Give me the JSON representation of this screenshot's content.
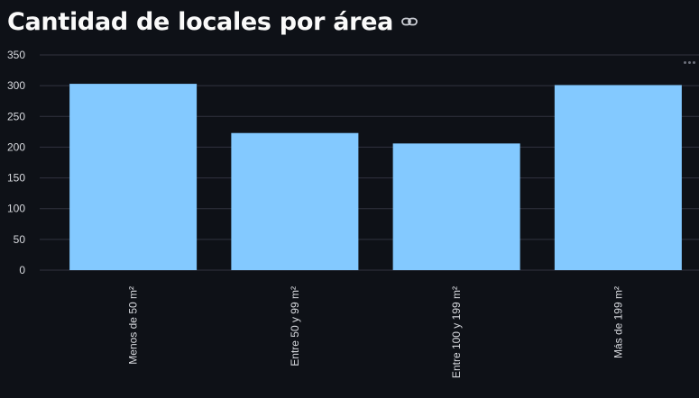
{
  "header": {
    "title": "Cantidad de locales por área",
    "link_icon": "link-icon"
  },
  "toolbar": {
    "menu_icon": "more-horizontal-icon"
  },
  "colors": {
    "background": "#0e1117",
    "bar": "#83c9ff",
    "grid": "#31333f",
    "text": "#fafafa"
  },
  "chart_data": {
    "type": "bar",
    "categories": [
      "Menos de 50 m²",
      "Entre 50 y 99 m²",
      "Entre 100 y 199 m²",
      "Más de 199 m²"
    ],
    "values": [
      303,
      223,
      206,
      301
    ],
    "title": "Cantidad de locales por área",
    "xlabel": "",
    "ylabel": "",
    "ylim": [
      0,
      350
    ],
    "yticks": [
      0,
      50,
      100,
      150,
      200,
      250,
      300,
      350
    ],
    "grid": true,
    "legend": "none"
  }
}
